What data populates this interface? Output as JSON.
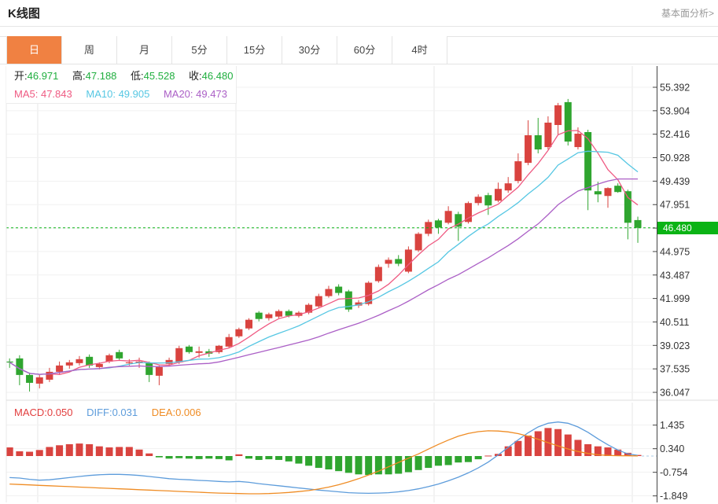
{
  "header": {
    "title": "K线图",
    "link_label": "基本面分析>"
  },
  "tabs": {
    "items": [
      "日",
      "周",
      "月",
      "5分",
      "15分",
      "30分",
      "60分",
      "4时"
    ],
    "selected_index": 0
  },
  "legend": {
    "open_label": "开:",
    "open_value": "46.971",
    "high_label": "高:",
    "high_value": "47.188",
    "low_label": "低:",
    "low_value": "45.528",
    "close_label": "收:",
    "close_value": "46.480",
    "ma5_label": "MA5:",
    "ma5_value": "47.843",
    "ma10_label": "MA10:",
    "ma10_value": "49.905",
    "ma20_label": "MA20:",
    "ma20_value": "49.473"
  },
  "macd_legend": {
    "macd_label": "MACD:",
    "macd_value": "0.050",
    "diff_label": "DIFF:",
    "diff_value": "0.031",
    "dea_label": "DEA:",
    "dea_value": "0.006"
  },
  "price_badge": {
    "value": "46.480"
  },
  "colors": {
    "up": "#d9433f",
    "down": "#2fa52f",
    "badge": "#0bb315",
    "ma5": "#ef5a82",
    "ma10": "#56c7e3",
    "ma20": "#ab5fc6",
    "diff": "#5d9cdb",
    "dea": "#ef8c24",
    "tab_selected_bg": "#f08142",
    "ohlc_value": "#1fae3e",
    "macd_text": "#e23e3e",
    "diff_text": "#5d9cdb",
    "dea_text": "#ef8c24",
    "axis_text": "#333333",
    "axis_line": "#444444"
  },
  "chart_data": [
    {
      "type": "candlestick",
      "title": "K线图",
      "interval_selected": "日",
      "ylim": [
        36.047,
        55.392
      ],
      "y_ticks": [
        "55.392",
        "53.904",
        "52.416",
        "50.928",
        "49.439",
        "47.951",
        "46.463",
        "44.975",
        "43.487",
        "41.999",
        "40.511",
        "39.023",
        "37.535",
        "36.047"
      ],
      "current_price": 46.48,
      "ohlc_last": {
        "open": 46.971,
        "high": 47.188,
        "low": 45.528,
        "close": 46.48
      },
      "ma_last": {
        "ma5": 47.843,
        "ma10": 49.905,
        "ma20": 49.473
      },
      "ma_periods": [
        5,
        10,
        20
      ],
      "candles": [
        [
          38.0,
          38.2,
          37.6,
          37.95
        ],
        [
          38.2,
          38.4,
          36.5,
          37.15
        ],
        [
          37.15,
          37.3,
          36.1,
          36.65
        ],
        [
          36.6,
          37.15,
          36.3,
          37.0
        ],
        [
          36.85,
          37.6,
          36.7,
          37.35
        ],
        [
          37.35,
          38.0,
          37.2,
          37.75
        ],
        [
          37.75,
          38.1,
          37.55,
          37.95
        ],
        [
          37.9,
          38.35,
          37.75,
          38.15
        ],
        [
          38.3,
          38.45,
          37.6,
          37.75
        ],
        [
          37.65,
          37.95,
          37.5,
          37.85
        ],
        [
          38.0,
          38.5,
          37.9,
          38.4
        ],
        [
          38.6,
          38.75,
          38.1,
          38.2
        ],
        [
          37.95,
          38.15,
          37.75,
          37.95
        ],
        [
          37.9,
          38.25,
          37.6,
          38.0
        ],
        [
          37.9,
          38.0,
          36.7,
          37.15
        ],
        [
          37.1,
          37.75,
          36.5,
          37.65
        ],
        [
          37.85,
          38.25,
          37.7,
          38.1
        ],
        [
          37.95,
          39.0,
          37.85,
          38.85
        ],
        [
          38.95,
          39.05,
          38.5,
          38.6
        ],
        [
          38.55,
          38.95,
          38.25,
          38.65
        ],
        [
          38.65,
          38.8,
          38.3,
          38.5
        ],
        [
          38.6,
          39.05,
          38.5,
          39.0
        ],
        [
          38.95,
          39.75,
          38.85,
          39.55
        ],
        [
          39.6,
          40.15,
          39.5,
          40.05
        ],
        [
          40.1,
          40.75,
          40.0,
          40.65
        ],
        [
          41.1,
          41.2,
          40.55,
          40.7
        ],
        [
          40.75,
          41.1,
          40.6,
          41.0
        ],
        [
          40.85,
          41.3,
          40.75,
          41.2
        ],
        [
          41.2,
          41.3,
          40.8,
          40.9
        ],
        [
          40.9,
          41.2,
          40.8,
          41.1
        ],
        [
          41.1,
          41.7,
          41.0,
          41.6
        ],
        [
          41.5,
          42.3,
          41.4,
          42.15
        ],
        [
          42.15,
          42.8,
          42.05,
          42.6
        ],
        [
          42.75,
          42.9,
          42.2,
          42.35
        ],
        [
          42.45,
          42.55,
          41.15,
          41.3
        ],
        [
          41.55,
          41.9,
          41.4,
          41.75
        ],
        [
          41.65,
          43.1,
          41.55,
          43.0
        ],
        [
          43.1,
          44.15,
          43.0,
          44.0
        ],
        [
          44.2,
          44.6,
          43.95,
          44.45
        ],
        [
          44.5,
          44.75,
          44.05,
          44.2
        ],
        [
          43.7,
          45.3,
          43.6,
          45.1
        ],
        [
          45.05,
          46.2,
          44.95,
          46.1
        ],
        [
          46.1,
          47.0,
          45.95,
          46.85
        ],
        [
          46.95,
          47.05,
          46.1,
          46.5
        ],
        [
          46.8,
          47.85,
          46.7,
          47.55
        ],
        [
          47.35,
          47.5,
          45.65,
          46.55
        ],
        [
          46.85,
          48.15,
          46.75,
          48.05
        ],
        [
          48.05,
          48.6,
          47.9,
          48.45
        ],
        [
          48.55,
          48.7,
          47.3,
          47.9
        ],
        [
          48.2,
          49.35,
          48.1,
          48.95
        ],
        [
          48.85,
          49.7,
          48.7,
          49.3
        ],
        [
          49.45,
          51.2,
          49.3,
          50.7
        ],
        [
          50.6,
          53.3,
          50.45,
          52.35
        ],
        [
          52.35,
          53.45,
          51.2,
          51.45
        ],
        [
          51.6,
          53.55,
          51.45,
          53.15
        ],
        [
          53.0,
          54.4,
          52.4,
          54.25
        ],
        [
          54.45,
          54.65,
          51.7,
          51.95
        ],
        [
          51.6,
          52.85,
          51.45,
          52.45
        ],
        [
          52.55,
          52.7,
          47.6,
          48.85
        ],
        [
          48.8,
          49.4,
          48.1,
          48.6
        ],
        [
          48.5,
          49.05,
          47.75,
          49.0
        ],
        [
          49.15,
          49.3,
          48.7,
          48.75
        ],
        [
          48.8,
          48.9,
          45.75,
          46.8
        ],
        [
          46.971,
          47.188,
          45.528,
          46.48
        ]
      ]
    },
    {
      "type": "macd",
      "ylim": [
        -1.849,
        1.435
      ],
      "y_ticks": [
        "1.435",
        "0.340",
        "-0.754",
        "-1.849"
      ],
      "macd_last": 0.05,
      "diff_last": 0.031,
      "dea_last": 0.006,
      "histogram": [
        0.4,
        0.22,
        0.2,
        0.28,
        0.42,
        0.5,
        0.55,
        0.58,
        0.55,
        0.45,
        0.4,
        0.42,
        0.42,
        0.3,
        0.12,
        -0.06,
        -0.12,
        -0.1,
        -0.12,
        -0.14,
        -0.12,
        -0.14,
        -0.2,
        0.08,
        -0.12,
        -0.18,
        -0.15,
        -0.18,
        -0.25,
        -0.35,
        -0.45,
        -0.55,
        -0.62,
        -0.7,
        -0.78,
        -0.85,
        -0.88,
        -0.85,
        -0.85,
        -0.82,
        -0.75,
        -0.65,
        -0.55,
        -0.45,
        -0.42,
        -0.3,
        -0.28,
        -0.15,
        0.02,
        0.1,
        0.45,
        0.7,
        0.95,
        1.15,
        1.3,
        1.25,
        1.0,
        0.75,
        0.55,
        0.45,
        0.4,
        0.3,
        0.15,
        0.05
      ],
      "diff_line": [
        -1.0,
        -1.02,
        -1.08,
        -1.12,
        -1.1,
        -1.05,
        -1.0,
        -0.95,
        -0.9,
        -0.87,
        -0.85,
        -0.85,
        -0.87,
        -0.9,
        -0.95,
        -1.0,
        -1.05,
        -1.08,
        -1.1,
        -1.13,
        -1.15,
        -1.18,
        -1.2,
        -1.18,
        -1.22,
        -1.28,
        -1.33,
        -1.38,
        -1.43,
        -1.48,
        -1.53,
        -1.58,
        -1.62,
        -1.66,
        -1.7,
        -1.72,
        -1.73,
        -1.72,
        -1.7,
        -1.66,
        -1.6,
        -1.52,
        -1.42,
        -1.3,
        -1.15,
        -0.98,
        -0.78,
        -0.55,
        -0.28,
        0.05,
        0.4,
        0.75,
        1.08,
        1.35,
        1.52,
        1.58,
        1.52,
        1.35,
        1.1,
        0.8,
        0.52,
        0.28,
        0.1,
        0.031
      ],
      "dea_line": [
        -1.3,
        -1.32,
        -1.34,
        -1.36,
        -1.38,
        -1.4,
        -1.42,
        -1.44,
        -1.46,
        -1.48,
        -1.5,
        -1.52,
        -1.54,
        -1.56,
        -1.58,
        -1.6,
        -1.62,
        -1.64,
        -1.66,
        -1.68,
        -1.7,
        -1.72,
        -1.73,
        -1.74,
        -1.75,
        -1.75,
        -1.74,
        -1.72,
        -1.69,
        -1.65,
        -1.6,
        -1.53,
        -1.44,
        -1.33,
        -1.2,
        -1.05,
        -0.88,
        -0.7,
        -0.5,
        -0.3,
        -0.1,
        0.1,
        0.32,
        0.54,
        0.74,
        0.92,
        1.05,
        1.13,
        1.17,
        1.16,
        1.12,
        1.04,
        0.92,
        0.78,
        0.62,
        0.47,
        0.33,
        0.21,
        0.12,
        0.06,
        0.03,
        0.015,
        0.01,
        0.006
      ]
    }
  ]
}
